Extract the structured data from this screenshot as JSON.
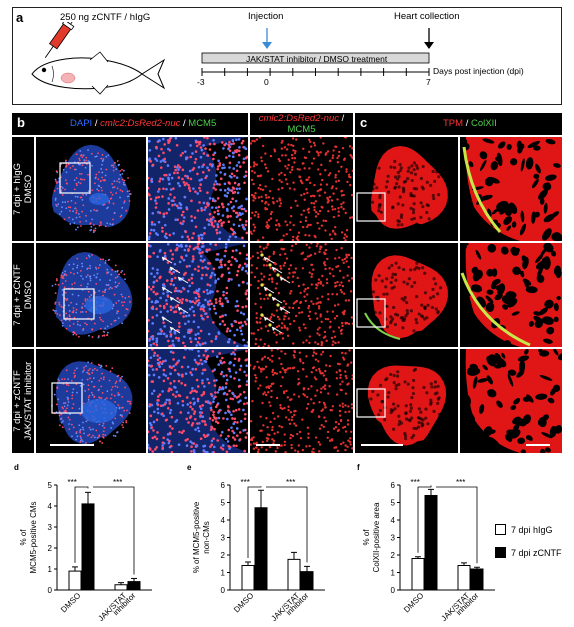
{
  "panel_a": {
    "letter": "a",
    "dose_label": "250 ng zCNTF / hIgG",
    "injection_label": "Injection",
    "heart_label": "Heart collection",
    "treatment_label": "JAK/STAT inhibitor / DMSO treatment",
    "days_label": "Days post injection (dpi)",
    "ticks": [
      "-3",
      "0",
      "7"
    ],
    "injection_color": "#3a8ad6"
  },
  "panel_b": {
    "letter": "b",
    "header1": {
      "dapi": "DAPI",
      "sep1": " / ",
      "cmlc2": "cmlc2:DsRed2-nuc",
      "sep2": " / ",
      "mcm5": "MCM5"
    },
    "header2": {
      "cmlc2": "cmlc2:DsRed2-nuc",
      "sep": " /",
      "mcm5": "MCM5"
    },
    "rows": [
      {
        "line1": "7 dpi + hIgG",
        "line2": "DMSO"
      },
      {
        "line1": "7 dpi + zCNTF",
        "line2": "DMSO"
      },
      {
        "line1": "7 dpi + zCNTF",
        "line2": "JAK/STAT inhibitor"
      }
    ]
  },
  "panel_c": {
    "letter": "c",
    "header": {
      "tpm": "TPM",
      "sep": " / ",
      "colxii": "ColXII"
    }
  },
  "colors": {
    "dapi": "#2d6bff",
    "dsred": "#ff3535",
    "green": "#4ccf4c"
  },
  "legend": {
    "items": [
      {
        "label": "7 dpi hIgG",
        "fill": "#ffffff"
      },
      {
        "label": "7 dpi zCNTF",
        "fill": "#000000"
      }
    ]
  },
  "chart_data": [
    {
      "panel": "d",
      "type": "bar",
      "ylabel": "% of MCM5-positive CMs",
      "categories": [
        "DMSO",
        "JAK/STAT inhibitor"
      ],
      "series": [
        {
          "name": "7 dpi hIgG",
          "values": [
            0.9,
            0.25
          ],
          "errors": [
            0.2,
            0.1
          ]
        },
        {
          "name": "7 dpi zCNTF",
          "values": [
            4.1,
            0.4
          ],
          "errors": [
            0.55,
            0.15
          ]
        }
      ],
      "yticks": [
        "0",
        "1",
        "2",
        "3",
        "4",
        "5"
      ],
      "ylim": [
        0,
        5
      ],
      "significance": [
        "***",
        "***"
      ]
    },
    {
      "panel": "e",
      "type": "bar",
      "ylabel": "% of MCM5-positive non-CMs",
      "categories": [
        "DMSO",
        "JAK/STAT inhibitor"
      ],
      "series": [
        {
          "name": "7 dpi hIgG",
          "values": [
            1.4,
            1.75
          ],
          "errors": [
            0.2,
            0.4
          ]
        },
        {
          "name": "7 dpi zCNTF",
          "values": [
            4.7,
            1.05
          ],
          "errors": [
            1.0,
            0.3
          ]
        }
      ],
      "yticks": [
        "0",
        "1",
        "2",
        "3",
        "4",
        "5",
        "6"
      ],
      "ylim": [
        0,
        6
      ],
      "significance": [
        "***",
        "***"
      ]
    },
    {
      "panel": "f",
      "type": "bar",
      "ylabel": "% of ColXII-positive area",
      "categories": [
        "DMSO",
        "JAK/STAT inhibitor"
      ],
      "series": [
        {
          "name": "7 dpi hIgG",
          "values": [
            1.8,
            1.4
          ],
          "errors": [
            0.1,
            0.15
          ]
        },
        {
          "name": "7 dpi zCNTF",
          "values": [
            5.4,
            1.2
          ],
          "errors": [
            0.35,
            0.1
          ]
        }
      ],
      "yticks": [
        "0",
        "1",
        "2",
        "3",
        "4",
        "5",
        "6"
      ],
      "ylim": [
        0,
        6
      ],
      "significance": [
        "***",
        "***"
      ]
    }
  ]
}
